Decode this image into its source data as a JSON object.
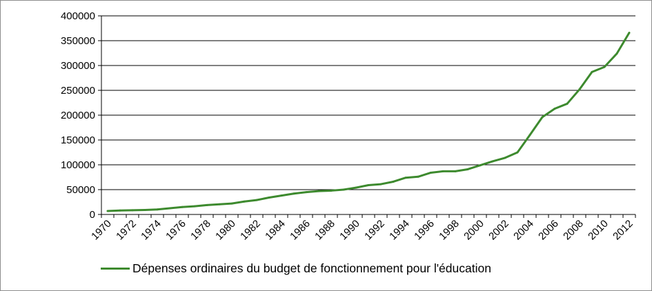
{
  "chart_data": {
    "type": "line",
    "title": "",
    "xlabel": "",
    "ylabel": "",
    "x": [
      1970,
      1971,
      1972,
      1973,
      1974,
      1975,
      1976,
      1977,
      1978,
      1979,
      1980,
      1981,
      1982,
      1983,
      1984,
      1985,
      1986,
      1987,
      1988,
      1989,
      1990,
      1991,
      1992,
      1993,
      1994,
      1995,
      1996,
      1997,
      1998,
      1999,
      2000,
      2001,
      2002,
      2003,
      2004,
      2005,
      2006,
      2007,
      2008,
      2009,
      2010,
      2011,
      2012
    ],
    "xticks": [
      "1970",
      "1972",
      "1974",
      "1976",
      "1978",
      "1980",
      "1982",
      "1984",
      "1986",
      "1988",
      "1990",
      "1992",
      "1994",
      "1996",
      "1998",
      "2000",
      "2002",
      "2004",
      "2006",
      "2008",
      "2010",
      "2012"
    ],
    "yticks": [
      "0",
      "50000",
      "100000",
      "150000",
      "200000",
      "250000",
      "300000",
      "350000",
      "400000"
    ],
    "ylim": [
      0,
      400000
    ],
    "grid": true,
    "legend_position": "bottom",
    "series": [
      {
        "name": "Dépenses ordinaires du budget de fonctionnement pour l'éducation",
        "color": "#3d8a2e",
        "values": [
          7000,
          8000,
          8500,
          9000,
          10000,
          12500,
          15000,
          16500,
          19000,
          20500,
          22000,
          26000,
          29000,
          34000,
          38000,
          42000,
          45000,
          47000,
          48000,
          50000,
          54000,
          59000,
          61000,
          66000,
          74000,
          76000,
          84000,
          87000,
          87000,
          91000,
          99000,
          107000,
          114000,
          125000,
          160000,
          196000,
          213000,
          223000,
          252000,
          287000,
          297000,
          324000,
          366000
        ]
      }
    ]
  }
}
